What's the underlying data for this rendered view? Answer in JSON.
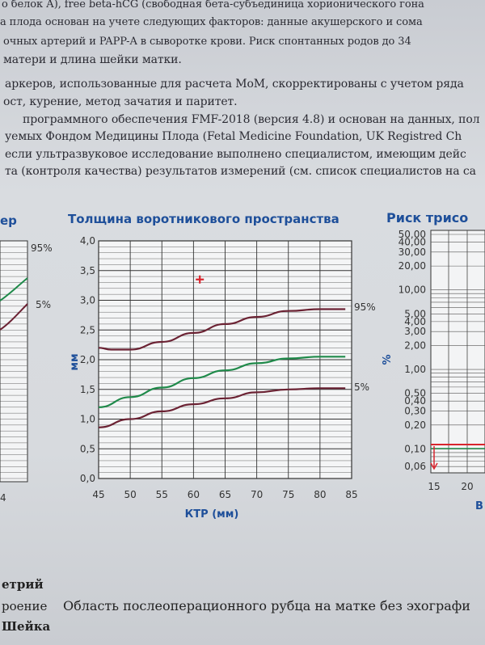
{
  "document": {
    "lines": [
      "о белок А), free beta-hCG (свободная бета-субъединица хорионического гона",
      "а плода основан на учете следующих факторов: данные акушерского и сома",
      "очных артерий и PAPP-A в сыворотке крови.  Риск спонтанных родов до 34",
      "матери и длина шейки матки.",
      "аркеров, использованные для расчета MoM, скорректированы с учетом ряда",
      "ост, курение, метод зачатия и паритет.",
      "программного обеспечения FMF-2018 (версия 4.8) и основан на данных, пол",
      "уемых Фондом Медицины Плода (Fetal Medicine Foundation, UK Registred Ch",
      "если ультразвуковое исследование выполнено специалистом, имеющим дейс",
      "та (контроля качества) результатов измерений (см. список специалистов на са"
    ],
    "bottom": {
      "heading1": "етрий",
      "row_label": "роение",
      "row_value": "Область послеоперационного рубца на матке без эхографи",
      "heading2": "Шейка"
    }
  },
  "left_chart": {
    "title": "ер",
    "label_95": "95%",
    "label_5": "5%",
    "tick": "4"
  },
  "right_chart": {
    "title": "Риск трисо",
    "ylabel": "%",
    "xlabel": "В",
    "y_ticks": [
      "50,00",
      "40,00",
      "30,00",
      "20,00",
      "10,00",
      "5,00",
      "4,00",
      "3,00",
      "2,00",
      "1,00",
      "0,50",
      "0,40",
      "0,30",
      "0,20",
      "0,10",
      "0,06"
    ],
    "x_ticks": [
      "15",
      "20"
    ]
  },
  "chart_data": {
    "type": "line",
    "title": "Толщина воротникового пространства",
    "xlabel": "КТР (мм)",
    "ylabel": "мм",
    "xlim": [
      45,
      85
    ],
    "ylim": [
      0.0,
      4.0
    ],
    "x_ticks": [
      "45",
      "50",
      "55",
      "60",
      "65",
      "70",
      "75",
      "80",
      "85"
    ],
    "y_ticks": [
      "0,0",
      "0,5",
      "1,0",
      "1,5",
      "2,0",
      "2,5",
      "3,0",
      "3,5",
      "4,0"
    ],
    "grid": true,
    "series": [
      {
        "name": "95%",
        "color": "#6b2233",
        "x": [
          45,
          47,
          50,
          55,
          60,
          65,
          70,
          75,
          80,
          84
        ],
        "y": [
          2.2,
          2.17,
          2.17,
          2.3,
          2.45,
          2.6,
          2.72,
          2.82,
          2.85,
          2.85
        ]
      },
      {
        "color": "#1f8a4a",
        "x": [
          45,
          50,
          55,
          60,
          65,
          70,
          75,
          80,
          84
        ],
        "y": [
          1.2,
          1.37,
          1.53,
          1.69,
          1.82,
          1.94,
          2.02,
          2.05,
          2.05
        ]
      },
      {
        "name": "5%",
        "color": "#6b2233",
        "x": [
          45,
          50,
          55,
          60,
          65,
          70,
          75,
          80,
          84
        ],
        "y": [
          0.86,
          1.0,
          1.13,
          1.25,
          1.35,
          1.45,
          1.5,
          1.52,
          1.52
        ]
      }
    ],
    "markers": [
      {
        "x": 61,
        "y": 3.35,
        "symbol": "+",
        "color": "#d8252e"
      }
    ]
  }
}
